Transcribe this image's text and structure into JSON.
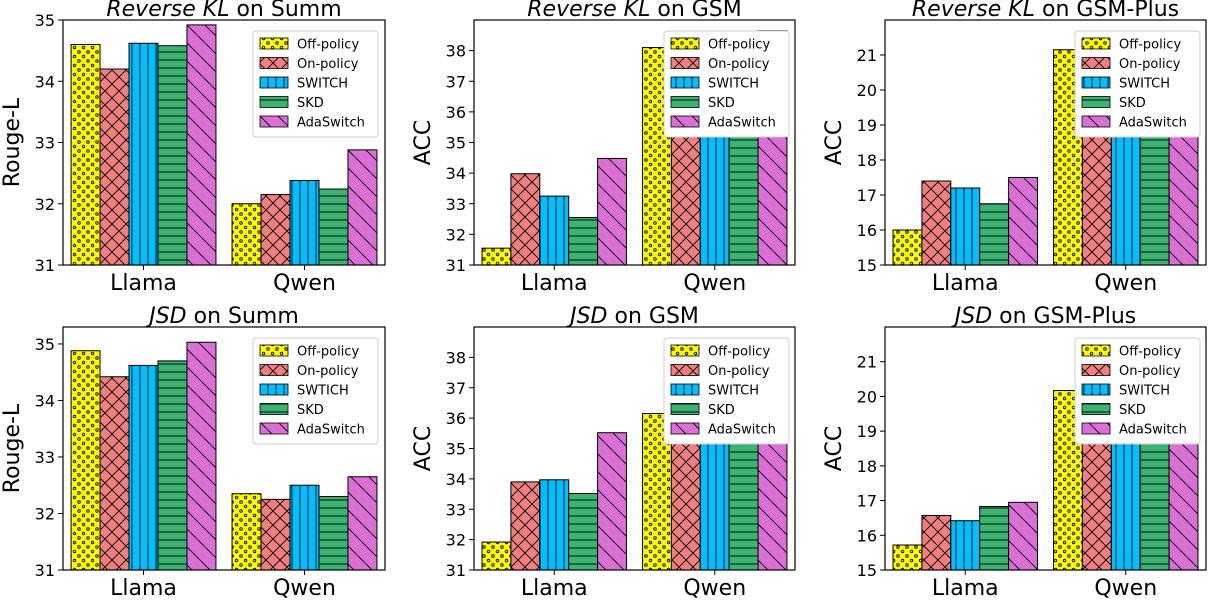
{
  "chart_data": [
    {
      "type": "bar",
      "title_prefix": "Reverse KL",
      "title_suffix": " on Summ",
      "ylabel": "Rouge-L",
      "ylim": [
        31,
        35
      ],
      "yticks": [
        "31",
        "32",
        "33",
        "34",
        "35"
      ],
      "categories": [
        "Llama",
        "Qwen"
      ],
      "series": [
        {
          "name": "Off-policy",
          "values": [
            34.6,
            32.0
          ]
        },
        {
          "name": "On-policy",
          "values": [
            34.2,
            32.15
          ]
        },
        {
          "name": "SWITCH",
          "values": [
            34.62,
            32.38
          ]
        },
        {
          "name": "SKD",
          "values": [
            34.58,
            32.24
          ]
        },
        {
          "name": "AdaSwitch",
          "values": [
            34.92,
            32.88
          ]
        }
      ]
    },
    {
      "type": "bar",
      "title_prefix": "Reverse KL",
      "title_suffix": " on GSM",
      "ylabel": "ACC",
      "ylim": [
        31,
        39
      ],
      "yticks": [
        "31",
        "32",
        "33",
        "34",
        "35",
        "36",
        "37",
        "38"
      ],
      "categories": [
        "Llama",
        "Qwen"
      ],
      "series": [
        {
          "name": "Off-policy",
          "values": [
            31.55,
            38.1
          ]
        },
        {
          "name": "On-policy",
          "values": [
            33.98,
            38.22
          ]
        },
        {
          "name": "SWITCH",
          "values": [
            33.25,
            38.48
          ]
        },
        {
          "name": "SKD",
          "values": [
            32.55,
            38.32
          ]
        },
        {
          "name": "AdaSwitch",
          "values": [
            34.48,
            38.65
          ]
        }
      ]
    },
    {
      "type": "bar",
      "title_prefix": "Reverse KL",
      "title_suffix": " on GSM-Plus",
      "ylabel": "ACC",
      "ylim": [
        15,
        22
      ],
      "yticks": [
        "15",
        "16",
        "17",
        "18",
        "19",
        "20",
        "21"
      ],
      "categories": [
        "Llama",
        "Qwen"
      ],
      "series": [
        {
          "name": "Off-policy",
          "values": [
            16.0,
            21.15
          ]
        },
        {
          "name": "On-policy",
          "values": [
            17.4,
            21.28
          ]
        },
        {
          "name": "SWITCH",
          "values": [
            17.2,
            20.6
          ]
        },
        {
          "name": "SKD",
          "values": [
            16.75,
            20.72
          ]
        },
        {
          "name": "AdaSwitch",
          "values": [
            17.5,
            21.62
          ]
        }
      ]
    },
    {
      "type": "bar",
      "title_prefix": "JSD",
      "title_suffix": " on Summ",
      "ylabel": "Rouge-L",
      "ylim": [
        31,
        35.3
      ],
      "yticks": [
        "31",
        "32",
        "33",
        "34",
        "35"
      ],
      "categories": [
        "Llama",
        "Qwen"
      ],
      "series": [
        {
          "name": "Off-policy",
          "values": [
            34.88,
            32.35
          ]
        },
        {
          "name": "On-policy",
          "values": [
            34.42,
            32.25
          ]
        },
        {
          "name": "SWTICH",
          "values": [
            34.62,
            32.5
          ]
        },
        {
          "name": "SKD",
          "values": [
            34.7,
            32.3
          ]
        },
        {
          "name": "AdaSwitch",
          "values": [
            35.03,
            32.65
          ]
        }
      ]
    },
    {
      "type": "bar",
      "title_prefix": "JSD",
      "title_suffix": " on GSM",
      "ylabel": "ACC",
      "ylim": [
        31,
        39
      ],
      "yticks": [
        "31",
        "32",
        "33",
        "34",
        "35",
        "36",
        "37",
        "38"
      ],
      "categories": [
        "Llama",
        "Qwen"
      ],
      "series": [
        {
          "name": "Off-policy",
          "values": [
            31.92,
            36.15
          ]
        },
        {
          "name": "On-policy",
          "values": [
            33.9,
            37.35
          ]
        },
        {
          "name": "SWITCH",
          "values": [
            33.97,
            36.35
          ]
        },
        {
          "name": "SKD",
          "values": [
            33.52,
            36.48
          ]
        },
        {
          "name": "AdaSwitch",
          "values": [
            35.52,
            38.28
          ]
        }
      ]
    },
    {
      "type": "bar",
      "title_prefix": "JSD",
      "title_suffix": " on GSM-Plus",
      "ylabel": "ACC",
      "ylim": [
        15,
        22
      ],
      "yticks": [
        "15",
        "16",
        "17",
        "18",
        "19",
        "20",
        "21"
      ],
      "categories": [
        "Llama",
        "Qwen"
      ],
      "series": [
        {
          "name": "Off-policy",
          "values": [
            15.72,
            20.17
          ]
        },
        {
          "name": "On-policy",
          "values": [
            16.57,
            20.8
          ]
        },
        {
          "name": "SWITCH",
          "values": [
            16.42,
            20.92
          ]
        },
        {
          "name": "SKD",
          "values": [
            16.83,
            20.72
          ]
        },
        {
          "name": "AdaSwitch",
          "values": [
            16.95,
            21.22
          ]
        }
      ]
    }
  ],
  "series_style": [
    {
      "color": "#ffff00",
      "pattern": "dots"
    },
    {
      "color": "#f08080",
      "pattern": "cross"
    },
    {
      "color": "#00bfff",
      "pattern": "vertical"
    },
    {
      "color": "#3cb371",
      "pattern": "horizontal"
    },
    {
      "color": "#da70d6",
      "pattern": "backslash"
    }
  ],
  "legend_position": "upper-right",
  "grid": false
}
